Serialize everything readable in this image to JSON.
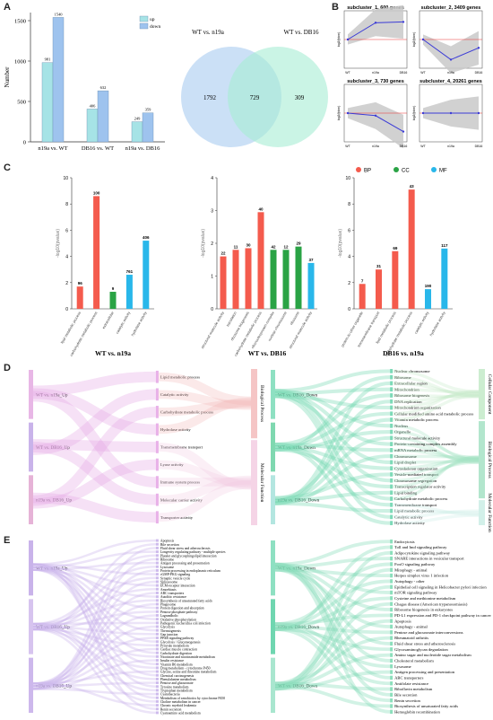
{
  "panels": {
    "a": "A",
    "b": "B",
    "c": "C",
    "d": "D",
    "e": "E"
  },
  "chart_data": [
    {
      "type": "bar",
      "panel": "A",
      "ylabel": "Number",
      "categories": [
        "n19a vs. WT",
        "DB16 vs. WT",
        "n19a vs. DB16"
      ],
      "series": [
        {
          "name": "up",
          "color": "#a6e3e6",
          "values": [
            981,
            406,
            249
          ]
        },
        {
          "name": "down",
          "color": "#9ec3ee",
          "values": [
            1540,
            632,
            359
          ]
        }
      ],
      "ylim": [
        0,
        1600
      ],
      "yticks": [
        0,
        500,
        1000,
        1500
      ],
      "legend": "top-right"
    },
    {
      "type": "venn",
      "panel": "A",
      "sets": [
        {
          "name": "WT vs. n19a",
          "only": 1792,
          "color": "#a9ccf0"
        },
        {
          "name": "WT vs. DB16",
          "only": 309,
          "color": "#a6ecd3"
        }
      ],
      "intersection": 729
    },
    {
      "type": "line",
      "panel": "B",
      "subplots": [
        {
          "title": "subcluster_1, 600 genes",
          "ylabel": "log2(fpkm)",
          "x": [
            "WT",
            "n19a",
            "DB16"
          ],
          "mean": [
            0.0,
            2.0,
            2.1
          ]
        },
        {
          "title": "subcluster_2, 3409 genes",
          "ylabel": "log2(fpkm)",
          "x": [
            "WT",
            "n19a",
            "DB16"
          ],
          "mean": [
            0.0,
            -2.4,
            -1.0
          ]
        },
        {
          "title": "subcluster_3, 730 genes",
          "ylabel": "log2(fpkm)",
          "x": [
            "WT",
            "n19a",
            "DB16"
          ],
          "mean": [
            0.0,
            -0.3,
            -2.2
          ]
        },
        {
          "title": "subcluster_4, 20261 genes",
          "ylabel": "log2(fpkm)",
          "x": [
            "WT",
            "n19a",
            "DB16"
          ],
          "mean": [
            0.0,
            0.0,
            0.0
          ]
        }
      ]
    },
    {
      "type": "bar",
      "panel": "C",
      "legend": [
        {
          "name": "BP",
          "color": "#f45b4d"
        },
        {
          "name": "CC",
          "color": "#2aa345"
        },
        {
          "name": "MF",
          "color": "#29b7ea"
        }
      ],
      "ylabel": "-log10(pvalue)",
      "subplots": [
        {
          "title": "WT vs. n19a",
          "ylim": [
            0,
            10
          ],
          "yticks": [
            0,
            2,
            4,
            6,
            8,
            10
          ],
          "bars": [
            {
              "label": "lipid metabolic process",
              "value": 1.7,
              "count": "96",
              "group": "BP"
            },
            {
              "label": "carbohydrate metabolic process",
              "value": 8.6,
              "count": "100",
              "group": "BP"
            },
            {
              "label": "extracellular",
              "value": 1.3,
              "count": "9",
              "group": "CC"
            },
            {
              "label": "catalytic activity",
              "value": 2.6,
              "count": "761",
              "group": "MF"
            },
            {
              "label": "hydrolase activity",
              "value": 5.2,
              "count": "406",
              "group": "MF"
            }
          ]
        },
        {
          "title": "WT vs. DB16",
          "ylim": [
            0,
            4
          ],
          "yticks": [
            0,
            1,
            2,
            3,
            4
          ],
          "bars": [
            {
              "label": "structural molecule activity",
              "value": 1.6,
              "count": "22",
              "group": "BP"
            },
            {
              "label": "translation",
              "value": 1.8,
              "count": "11",
              "group": "BP"
            },
            {
              "label": "ribosome biogenesis",
              "value": 1.85,
              "count": "30",
              "group": "BP"
            },
            {
              "label": "carbohydrate metabolic process",
              "value": 2.95,
              "count": "40",
              "group": "BP"
            },
            {
              "label": "ribonucleoprotein complex",
              "value": 1.8,
              "count": "42",
              "group": "CC"
            },
            {
              "label": "nuclear chromosome",
              "value": 1.8,
              "count": "12",
              "group": "CC"
            },
            {
              "label": "ribosome",
              "value": 1.9,
              "count": "29",
              "group": "CC"
            },
            {
              "label": "structural molecule activity",
              "value": 1.4,
              "count": "37",
              "group": "MF"
            }
          ]
        },
        {
          "title": "DB16 vs. n19a",
          "ylim": [
            0,
            10
          ],
          "yticks": [
            0,
            2,
            4,
            6,
            8,
            10
          ],
          "bars": [
            {
              "label": "protein-to-other organelle",
              "value": 1.9,
              "count": "7",
              "group": "BP"
            },
            {
              "label": "transmembrane transport",
              "value": 3.0,
              "count": "31",
              "group": "BP"
            },
            {
              "label": "lipid metabolic process",
              "value": 4.4,
              "count": "69",
              "group": "BP"
            },
            {
              "label": "carbohydrate metabolic process",
              "value": 9.1,
              "count": "43",
              "group": "BP"
            },
            {
              "label": "catalytic activity",
              "value": 1.5,
              "count": "190",
              "group": "MF"
            },
            {
              "label": "hydrolase activity",
              "value": 4.6,
              "count": "117",
              "group": "MF"
            }
          ]
        }
      ]
    },
    {
      "type": "sankey",
      "panel": "D",
      "left": {
        "sources": [
          "WT vs. n19a_Up",
          "WT vs. DB16_Up",
          "n19a vs. DB16_Up"
        ],
        "terms": [
          "Lipid metabolic process",
          "Catalytic activity",
          "Carbohydrate metabolic process",
          "Hydrolase activity",
          "Transmembrane transport",
          "Lyase activity",
          "Immune system process",
          "Molecular carrier activity",
          "Transporter activity"
        ],
        "categories": [
          "Biological Process",
          "Molecular Function"
        ]
      },
      "right": {
        "sources": [
          "WT vs. DB16_Down",
          "WT vs. n19a_Down",
          "n19a vs. DB16_Down"
        ],
        "terms": [
          "Nuclear chromosome",
          "Ribosome",
          "Extracellular region",
          "Mitochondrion",
          "Ribosome biogenesis",
          "DNA replication",
          "Mitochondrion organization",
          "Cellular modified amino acid metabolic process",
          "Vitamin metabolic process",
          "Nucleus",
          "Organelle",
          "Structural molecule activity",
          "Protein-containing complex assembly",
          "mRNA metabolic process",
          "Chromosome",
          "Lipid droplet",
          "Cytoskeleton organization",
          "Vesicle-mediated transport",
          "Chromosome segregation",
          "Transcription regulator activity",
          "Lipid binding",
          "Carbohydrate metabolic process",
          "Transmembrane transport",
          "Lipid metabolic process",
          "Catalytic activity",
          "Hydrolase activity"
        ],
        "categories": [
          "Cellular Component",
          "Biological Process",
          "Molecular Function"
        ]
      }
    },
    {
      "type": "sankey",
      "panel": "E",
      "left": {
        "sources": [
          "WT vs. n19a_Up",
          "WT vs. DB16_Up",
          "n19a vs. DB16_Up"
        ],
        "terms": [
          "Apoptosis",
          "Bile secretion",
          "Fluid shear stress and atherosclerosis",
          "Longevity regulating pathway - multiple species",
          "Platelet and glycosphingolipid interaction",
          "Ribosome",
          "Antigen processing and presentation",
          "Lysosome",
          "Protein processing in endoplasmic reticulum",
          "cGMP-PKG signaling",
          "Synaptic vesicle cycle",
          "Spliceosome",
          "ECM-receptor interaction",
          "Amoebiasis",
          "ABC transporters",
          "Autolitic resistance",
          "Biosynthesis of unsaturated fatty acids",
          "Phagosome",
          "Protein digestion and absorption",
          "Pentose phosphate pathway",
          "Lagrandholic",
          "Oxidative phosphorylation",
          "Pathogenic Escherichia coli infection",
          "Glycolysis",
          "Thermogenesis",
          "Gap junction",
          "PPAR signaling pathway",
          "Glycolysis / Gluconeogenesis",
          "Pyruvate metabolism",
          "Cardiac muscle contraction",
          "Carbohydrate digestion",
          "Nicotinate and nicotinamide metabolism",
          "Insulin resistance",
          "Vitamin B6 metabolism",
          "Drug metabolism - cytochrome P450",
          "Glycine, serine and threonine metabolism",
          "Chemical carcinogenesis",
          "Phenylalanine metabolism",
          "Pentose and glucuronate",
          "Tyrosine metabolism",
          "Tryptophan metabolism",
          "Cyanobacteria",
          "Metabolism of xenobiotics by cytochrome P450",
          "Choline metabolism in cancer",
          "Chronic myeloid leukemia",
          "Renin secretion",
          "Cyanoamino acid metabolism"
        ]
      },
      "right": {
        "sources": [
          "WT vs. n19a_Down",
          "n19a vs. DB16_Down",
          "WT vs. DB16_Down"
        ],
        "terms": [
          "Endocytosis",
          "Toll and Imd signaling pathway",
          "Adipocytokine signaling pathway",
          "SNARE interactions in vesicular transport",
          "FoxO signaling pathway",
          "Mitophagy - animal",
          "Herpes simplex virus 1 infection",
          "Autophagy - other",
          "Epithelial cell signaling in Helicobacter pylori infection",
          "mTOR signaling pathway",
          "Cysteine and methionine metabolism",
          "Chagas disease (American trypanosomiasis)",
          "Ribosome biogenesis in eukaryotes",
          "PD-L1 expression and PD-1 checkpoint pathway in cancer",
          "Apoptosis",
          "Autophagy - animal",
          "Pentose and glucuronate interconversions",
          "Rheumatoid arthritis",
          "Fluid shear stress and atherosclerosis",
          "Glycosaminoglycan degradation",
          "Amino sugar and nucleotide sugar metabolism",
          "Cholesterol metabolism",
          "Lysosome",
          "Antigen processing and presentation",
          "ABC transporters",
          "Antifolate resistance",
          "Riboflavin metabolism",
          "Bile secretion",
          "Renin secretion",
          "Biosynthesis of unsaturated fatty acids",
          "Hemoglobin recombination"
        ]
      }
    }
  ]
}
